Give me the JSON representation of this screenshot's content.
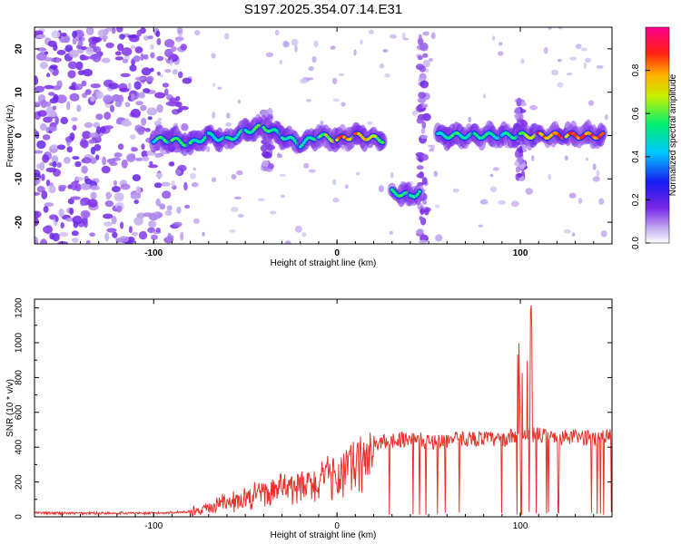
{
  "title": "S197.2025.354.07.14.E31",
  "chart_data": [
    {
      "type": "heatmap",
      "name": "spectrogram",
      "xlabel": "Height of straight line (km)",
      "ylabel": "Frequency (Hz)",
      "xlim": [
        -165,
        150
      ],
      "ylim": [
        -25,
        25
      ],
      "xticks": [
        -100,
        0,
        100
      ],
      "yticks": [
        -20,
        -10,
        0,
        10,
        20
      ],
      "colorbar": {
        "label": "Normalized spectral amplitude",
        "range": [
          0,
          1
        ],
        "ticks": [
          "0.0",
          "0.2",
          "0.4",
          "0.6",
          "0.8"
        ],
        "tick_values": [
          0.0,
          0.2,
          0.4,
          0.6,
          0.8
        ],
        "colormap": "rainbow (white→violet→blue→cyan→green→yellow→red→magenta)"
      },
      "ridge": [
        {
          "x": -100,
          "f": -1,
          "amp": 0.55
        },
        {
          "x": -90,
          "f": -1,
          "amp": 0.6
        },
        {
          "x": -80,
          "f": -2,
          "amp": 0.55
        },
        {
          "x": -70,
          "f": 0,
          "amp": 0.5
        },
        {
          "x": -60,
          "f": -1,
          "amp": 0.55
        },
        {
          "x": -50,
          "f": 1,
          "amp": 0.5
        },
        {
          "x": -40,
          "f": 2,
          "amp": 0.6
        },
        {
          "x": -30,
          "f": 0,
          "amp": 0.55
        },
        {
          "x": -20,
          "f": -2,
          "amp": 0.5
        },
        {
          "x": -10,
          "f": 0,
          "amp": 0.55
        },
        {
          "x": 0,
          "f": -1,
          "amp": 0.9
        },
        {
          "x": 10,
          "f": 0,
          "amp": 0.8
        },
        {
          "x": 25,
          "f": -1,
          "amp": 0.65
        },
        {
          "x": 30,
          "f": -13,
          "amp": 0.55
        },
        {
          "x": 40,
          "f": -14,
          "amp": 0.6
        },
        {
          "x": 45,
          "f": -13,
          "amp": 0.5
        },
        {
          "x": 55,
          "f": 0,
          "amp": 0.55
        },
        {
          "x": 75,
          "f": 0,
          "amp": 0.55
        },
        {
          "x": 90,
          "f": 0,
          "amp": 0.5
        },
        {
          "x": 100,
          "f": 0,
          "amp": 0.6
        },
        {
          "x": 110,
          "f": 0,
          "amp": 0.9
        },
        {
          "x": 125,
          "f": 0,
          "amp": 0.85
        },
        {
          "x": 145,
          "f": 0,
          "amp": 0.9
        }
      ]
    },
    {
      "type": "line",
      "name": "snr",
      "xlabel": "Height of straight line (km)",
      "ylabel": "SNR (10 * v/v)",
      "xlim": [
        -165,
        150
      ],
      "ylim": [
        0,
        1250
      ],
      "xticks": [
        -100,
        0,
        100
      ],
      "yticks": [
        0,
        200,
        400,
        600,
        800,
        1000,
        1200
      ],
      "color": "#e8302a",
      "series": [
        {
          "name": "SNR",
          "x": [
            -165,
            -140,
            -120,
            -100,
            -90,
            -80,
            -70,
            -60,
            -50,
            -40,
            -30,
            -20,
            -10,
            0,
            10,
            20,
            30,
            40,
            50,
            60,
            70,
            80,
            90,
            95,
            100,
            102,
            105,
            107,
            110,
            120,
            130,
            140,
            150
          ],
          "y": [
            22,
            20,
            22,
            20,
            25,
            30,
            60,
            100,
            130,
            170,
            190,
            210,
            240,
            300,
            360,
            420,
            440,
            450,
            430,
            440,
            450,
            450,
            440,
            460,
            460,
            1000,
            1150,
            1250,
            470,
            450,
            460,
            450,
            470
          ]
        }
      ]
    }
  ]
}
